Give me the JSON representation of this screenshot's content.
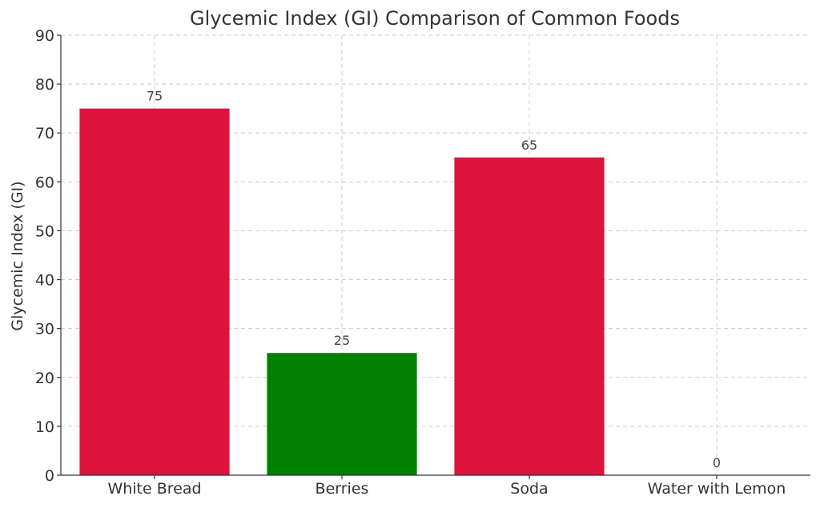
{
  "chart_data": {
    "type": "bar",
    "title": "Glycemic Index (GI) Comparison of Common Foods",
    "xlabel": "",
    "ylabel": "Glycemic Index (GI)",
    "categories": [
      "White Bread",
      "Berries",
      "Soda",
      "Water with Lemon"
    ],
    "values": [
      75,
      25,
      65,
      0
    ],
    "data_labels": [
      "75",
      "25",
      "65",
      "0"
    ],
    "colors": [
      "#dc143c",
      "#008000",
      "#dc143c",
      "#dc143c"
    ],
    "ylim": [
      0,
      90
    ],
    "yticks": [
      "0",
      "10",
      "20",
      "30",
      "40",
      "50",
      "60",
      "70",
      "80",
      "90"
    ],
    "grid": true
  }
}
